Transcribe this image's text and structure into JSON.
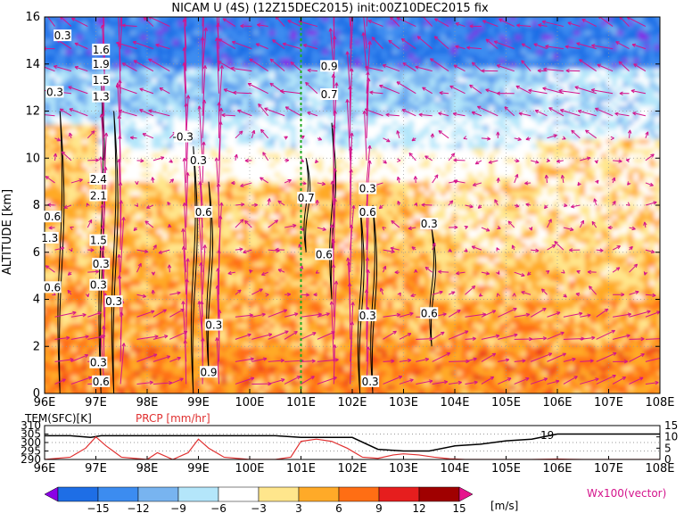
{
  "title": "NICAM U (4S) (12Z15DEC2015) init:00Z10DEC2015 fix",
  "chart_data": [
    {
      "type": "heatmap",
      "title": "NICAM U (4S) (12Z15DEC2015) init:00Z10DEC2015 fix",
      "xlabel": "",
      "ylabel": "ALTITUDE [km]",
      "x_ticks": [
        "96E",
        "97E",
        "98E",
        "99E",
        "100E",
        "101E",
        "102E",
        "103E",
        "104E",
        "105E",
        "106E",
        "107E",
        "108E"
      ],
      "x_range": [
        96,
        108
      ],
      "y_ticks": [
        "0",
        "2",
        "4",
        "6",
        "8",
        "10",
        "12",
        "14",
        "16"
      ],
      "y_range": [
        0,
        16
      ],
      "grid": true,
      "marker_line_lon": 101,
      "contour_labels": [
        "0.3",
        "1.6",
        "1.9",
        "1.5",
        "1.3",
        "0.3",
        "-0.3",
        "0.3",
        "2.4",
        "2.1",
        "1.5",
        "0.6",
        "1.3",
        "0.6",
        "0.3",
        "0.3",
        "0.3",
        "0.6",
        "0.3",
        "0.9",
        "0.7",
        "0.3",
        "0.6",
        "0.6",
        "0.3",
        "0.6",
        "0.3",
        "0.3",
        "0.9",
        "0.7",
        "0.3",
        "0.6"
      ],
      "layers": [
        {
          "alt_range": [
            0,
            2
          ],
          "u_ms": 9
        },
        {
          "alt_range": [
            2,
            6
          ],
          "u_ms": 8
        },
        {
          "alt_range": [
            6,
            9
          ],
          "u_ms": 6
        },
        {
          "alt_range": [
            9,
            11
          ],
          "u_ms": 0
        },
        {
          "alt_range": [
            11,
            14
          ],
          "u_ms": -5
        },
        {
          "alt_range": [
            14,
            16
          ],
          "u_ms": -12
        }
      ]
    },
    {
      "type": "line",
      "left_label": "TEM(SFC)[K]",
      "right_label": "PRCP [mm/hr]",
      "left_ticks": [
        "310",
        "305",
        "300",
        "295",
        "290"
      ],
      "left_range": [
        290,
        310
      ],
      "right_ticks": [
        "15",
        "10",
        "5",
        "0"
      ],
      "right_range": [
        0,
        15
      ],
      "annotation": "19",
      "x_ticks": [
        "96E",
        "97E",
        "98E",
        "99E",
        "100E",
        "101E",
        "102E",
        "103E",
        "104E",
        "105E",
        "106E",
        "107E",
        "108E"
      ],
      "series": [
        {
          "name": "TEM(SFC)[K]",
          "color": "#000000",
          "x": [
            96,
            96.5,
            96.9,
            97.1,
            97.5,
            98,
            98.5,
            99,
            99.5,
            100,
            100.5,
            101,
            101.5,
            102,
            102.5,
            103,
            103.5,
            104,
            104.5,
            105,
            105.5,
            106,
            106.5,
            107,
            107.5,
            108
          ],
          "y": [
            304,
            304,
            303,
            304,
            304,
            304,
            304,
            304,
            304,
            304,
            304,
            303,
            303,
            303,
            296,
            295,
            295,
            298,
            299,
            301,
            302,
            305,
            305,
            305,
            305,
            305
          ]
        },
        {
          "name": "PRCP [mm/hr]",
          "color": "#e03030",
          "x": [
            96,
            96.5,
            96.8,
            97,
            97.2,
            97.5,
            98,
            98.2,
            98.5,
            98.8,
            99,
            99.2,
            99.5,
            100,
            100.5,
            100.8,
            101,
            101.3,
            101.6,
            101.9,
            102.2,
            102.5,
            102.8,
            103,
            103.3,
            103.6,
            103.9,
            104.2,
            104.5,
            105,
            105.5,
            106,
            106.5,
            107,
            108
          ],
          "y": [
            0,
            1,
            5,
            10,
            6,
            1,
            0,
            3,
            0,
            3,
            9,
            5,
            1,
            0,
            0,
            1,
            8,
            9,
            8,
            5,
            1,
            0.5,
            2,
            2.5,
            2,
            1,
            0.3,
            0,
            0,
            0,
            0,
            0.2,
            0,
            0,
            0
          ]
        }
      ]
    }
  ],
  "colorbar": {
    "labels": [
      "−15",
      "−12",
      "−9",
      "−6",
      "−3",
      "3",
      "6",
      "9",
      "12",
      "15"
    ],
    "colors": [
      "#8b00e6",
      "#1e6ee6",
      "#3c8cf0",
      "#78b4f0",
      "#b4e6fa",
      "#ffffff",
      "#ffe68c",
      "#ffaa28",
      "#ff6e14",
      "#e61e1e",
      "#a00000",
      "#e6148c"
    ],
    "unit": "[m/s]",
    "vector_label": "Wx100(vector)"
  }
}
